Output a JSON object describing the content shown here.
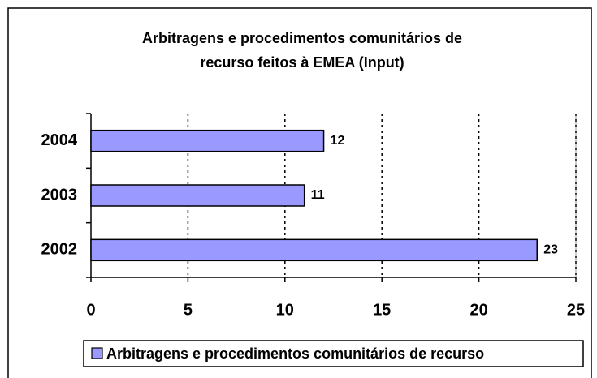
{
  "chart_data": {
    "type": "bar",
    "orientation": "horizontal",
    "title": [
      "Arbitragens e procedimentos comunitários de",
      "recurso feitos à EMEA (Input)"
    ],
    "categories": [
      "2002",
      "2003",
      "2004"
    ],
    "series": [
      {
        "name": "Arbitragens e procedimentos comunitários de recurso",
        "color": "#9999ff",
        "values": [
          23,
          11,
          12
        ]
      }
    ],
    "xlim": [
      0,
      25
    ],
    "xticks": [
      0,
      5,
      10,
      15,
      20,
      25
    ],
    "grid": true,
    "legend": "bottom"
  }
}
